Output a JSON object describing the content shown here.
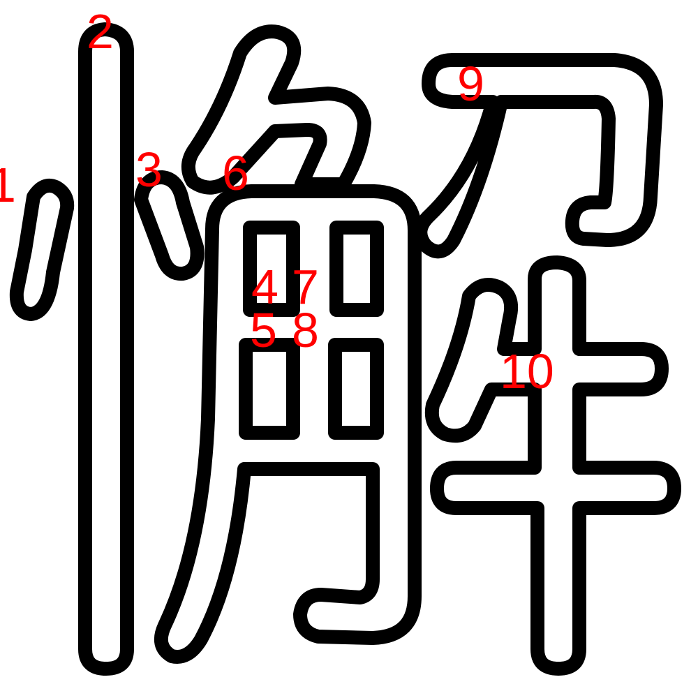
{
  "colors": {
    "background": "#ffffff",
    "outline": "#000000",
    "stroke_fill": "#ffffff",
    "number_label": "#ff0000"
  },
  "stroke_order_labels": [
    "1",
    "2",
    "3",
    "4",
    "5",
    "6",
    "7",
    "8",
    "9",
    "10"
  ]
}
